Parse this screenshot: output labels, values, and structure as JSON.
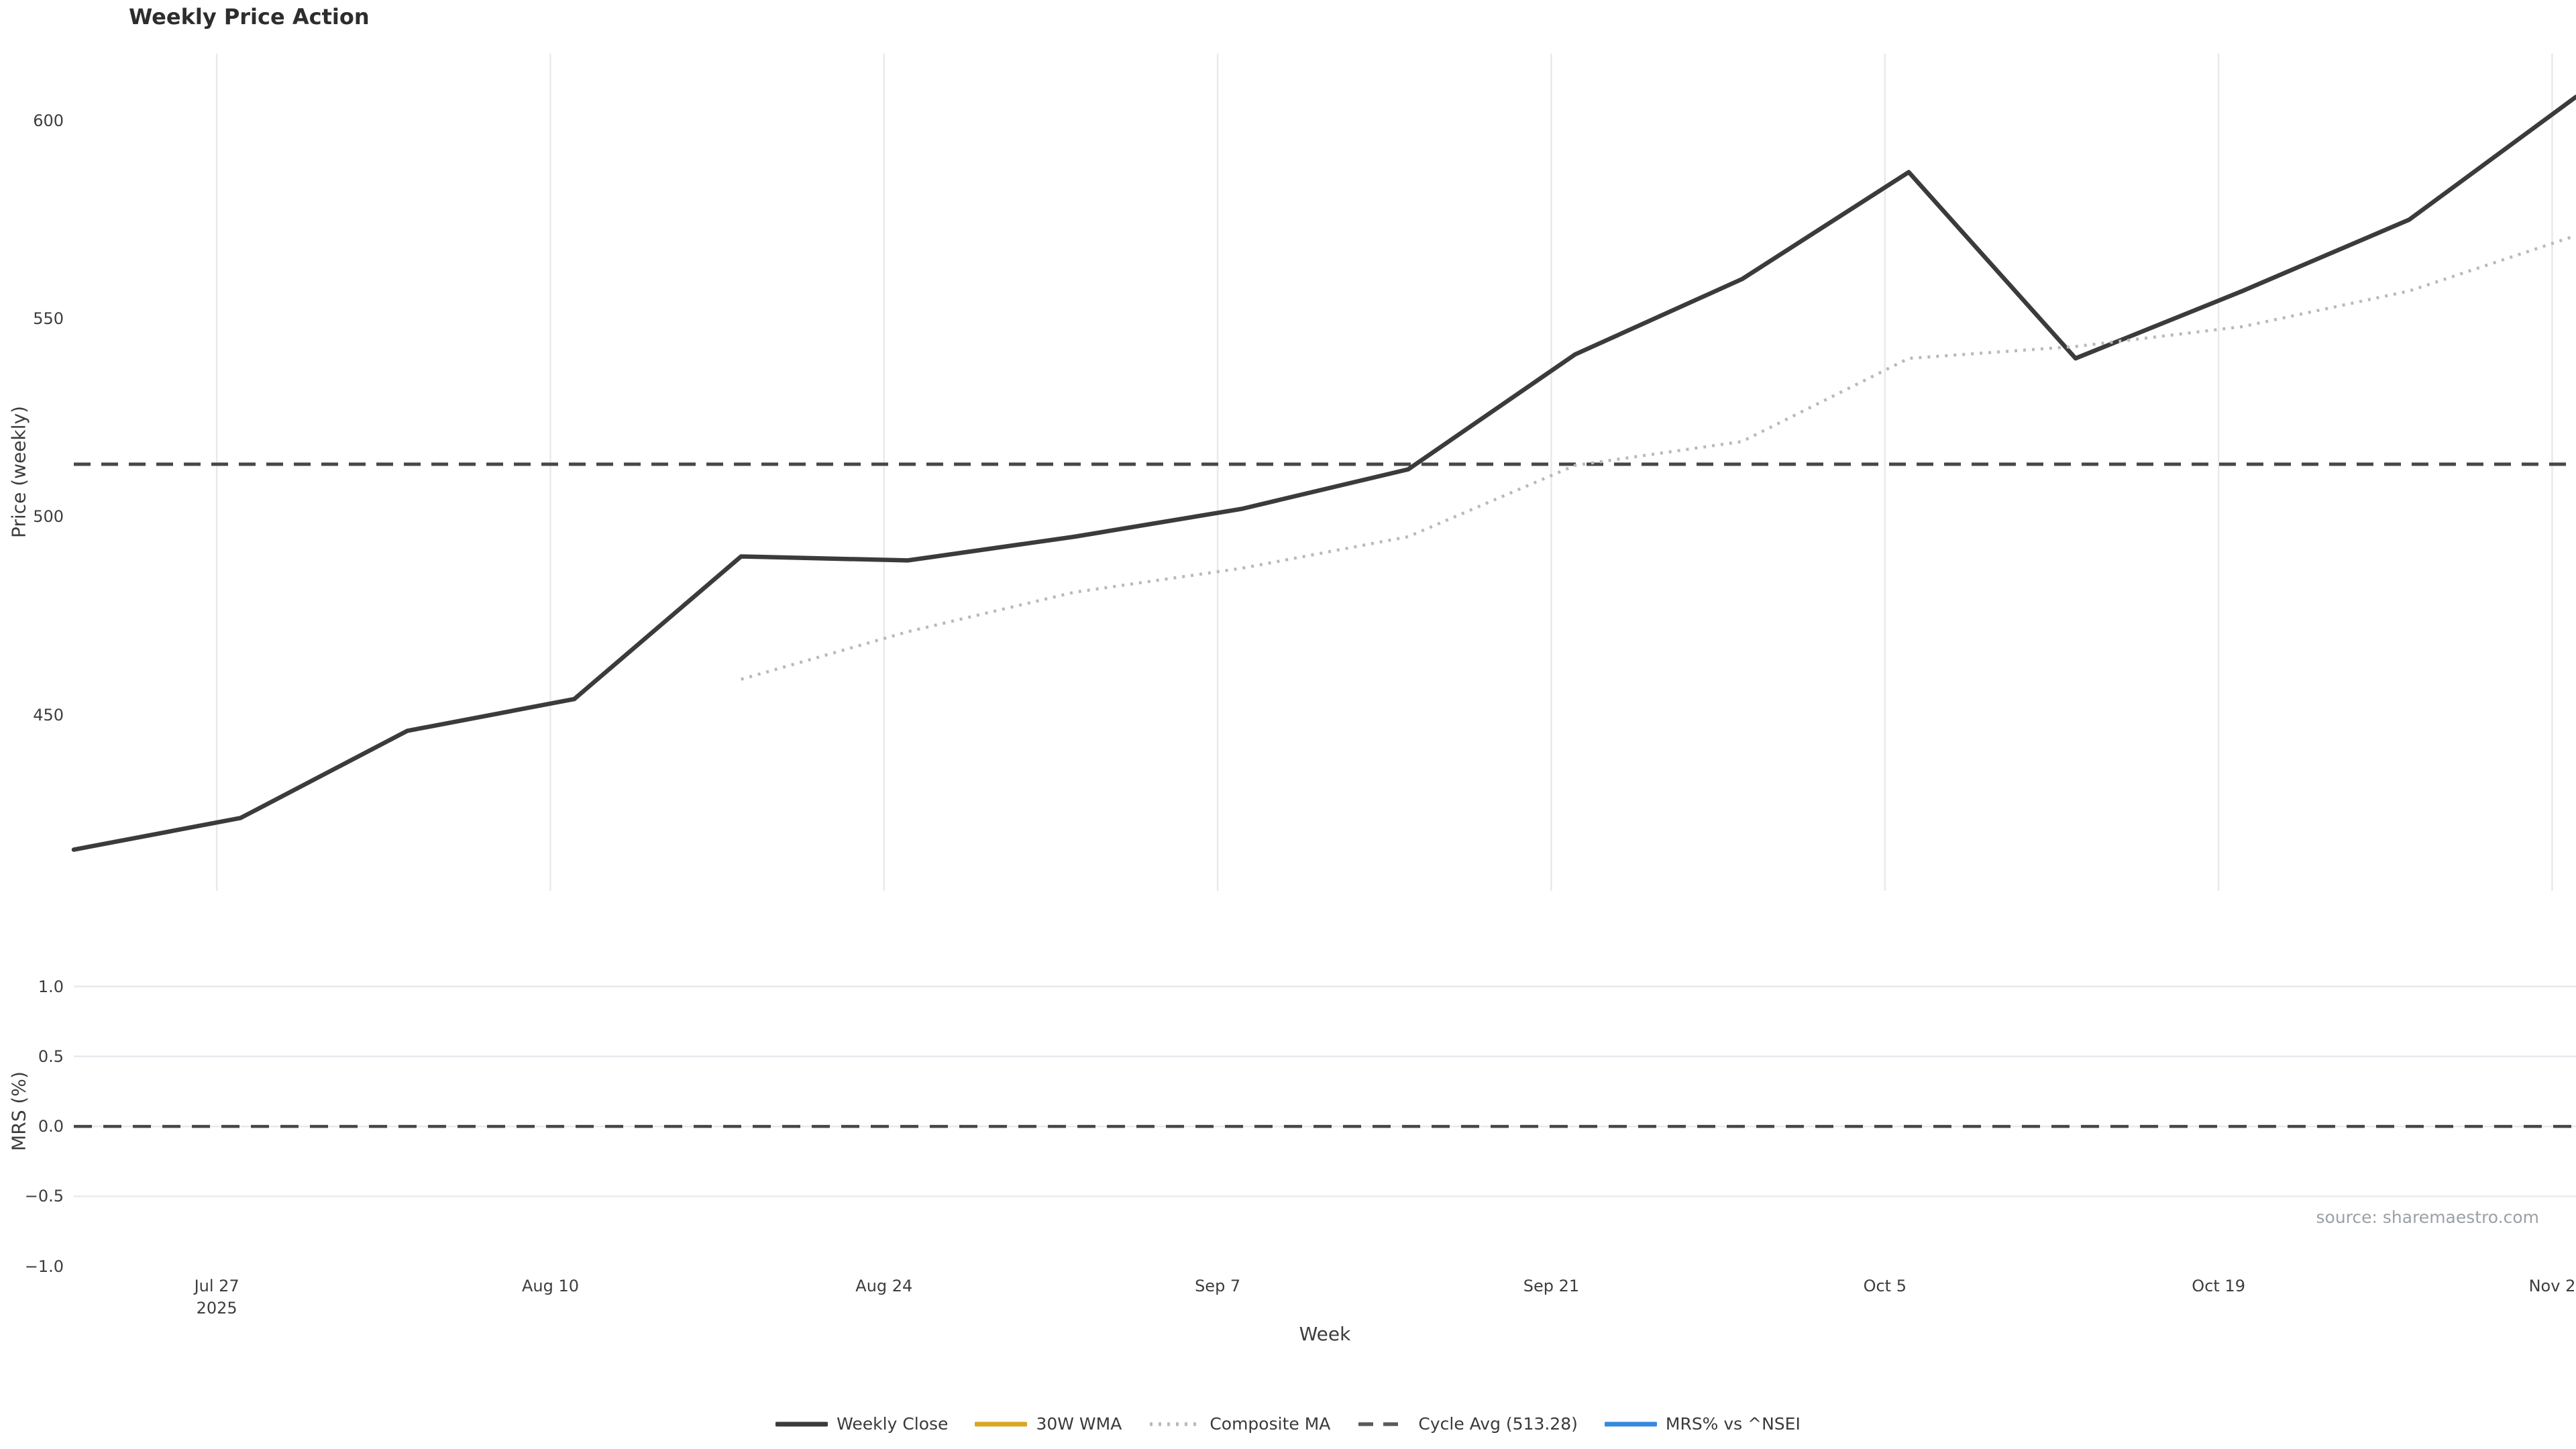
{
  "title": "Weekly Price Action",
  "xlabel": "Week",
  "source": "source: sharemaestro.com",
  "price_panel": {
    "ylabel": "Price (weekly)",
    "ytick_labels": [
      "450",
      "500",
      "550",
      "600"
    ]
  },
  "mrs_panel": {
    "ylabel": "MRS (%)",
    "ytick_labels": [
      "1.0",
      "0.5",
      "0.0",
      "−0.5",
      "−1.0"
    ]
  },
  "legend": [
    {
      "label": "Weekly Close",
      "color": "#3b3b3b",
      "style": "solid"
    },
    {
      "label": "30W WMA",
      "color": "#DAA520",
      "style": "solid"
    },
    {
      "label": "Composite MA",
      "color": "#b9b9b9",
      "style": "dotted"
    },
    {
      "label": "Cycle Avg (513.28)",
      "color": "#5a5a5a",
      "style": "dashed"
    },
    {
      "label": "MRS% vs ^NSEI",
      "color": "#3788DE",
      "style": "solid"
    }
  ],
  "chart_data": [
    {
      "type": "line",
      "panel": "price",
      "title": "Weekly Price Action",
      "xlabel": "Week",
      "ylabel": "Price (weekly)",
      "x_dates": [
        "2025-07-21",
        "2025-07-28",
        "2025-08-04",
        "2025-08-11",
        "2025-08-18",
        "2025-08-25",
        "2025-09-01",
        "2025-09-08",
        "2025-09-15",
        "2025-09-22",
        "2025-09-29",
        "2025-10-06",
        "2025-10-13",
        "2025-10-20",
        "2025-10-27",
        "2025-11-03"
      ],
      "x_days": [
        0,
        7,
        14,
        21,
        28,
        35,
        42,
        49,
        56,
        63,
        70,
        77,
        84,
        91,
        98,
        105
      ],
      "xlim_days": [
        0,
        105
      ],
      "series": [
        {
          "name": "Weekly Close",
          "color": "#3b3b3b",
          "style": "solid",
          "values": [
            416,
            424,
            446,
            454,
            490,
            489,
            495,
            502,
            512,
            541,
            560,
            587,
            540,
            557,
            575,
            606
          ]
        },
        {
          "name": "Composite MA",
          "color": "#b9b9b9",
          "style": "dotted",
          "values": [
            null,
            null,
            null,
            null,
            459,
            471,
            481,
            487,
            495,
            513,
            519,
            540,
            543,
            548,
            557,
            571
          ]
        },
        {
          "name": "30W WMA",
          "color": "#DAA520",
          "style": "solid",
          "values": [
            null,
            null,
            null,
            null,
            null,
            null,
            null,
            null,
            null,
            null,
            null,
            null,
            null,
            null,
            null,
            null
          ]
        },
        {
          "name": "Cycle Avg",
          "color": "#474747",
          "style": "dashed",
          "constant": 513.28
        }
      ],
      "cycle_avg": 513.28,
      "yticks": [
        450,
        500,
        550,
        600
      ],
      "ylim": [
        405.6,
        616.9
      ],
      "xticks": [
        {
          "label": "Jul 27",
          "sub": "2025",
          "day": 6
        },
        {
          "label": "Aug 10",
          "sub": "",
          "day": 20
        },
        {
          "label": "Aug 24",
          "sub": "",
          "day": 34
        },
        {
          "label": "Sep 7",
          "sub": "",
          "day": 48
        },
        {
          "label": "Sep 21",
          "sub": "",
          "day": 62
        },
        {
          "label": "Oct 5",
          "sub": "",
          "day": 76
        },
        {
          "label": "Oct 19",
          "sub": "",
          "day": 90
        },
        {
          "label": "Nov 2",
          "sub": "",
          "day": 104
        }
      ],
      "grid": "vertical-only",
      "legend_position": "bottom-center"
    },
    {
      "type": "line",
      "panel": "mrs",
      "ylabel": "MRS (%)",
      "series": [
        {
          "name": "MRS% vs ^NSEI",
          "color": "#3788DE",
          "style": "solid",
          "values": []
        }
      ],
      "zero_line": 0.0,
      "yticks": [
        1.0,
        0.5,
        0.0,
        -0.5,
        -1.0
      ],
      "ylim": [
        -1.05,
        1.3
      ],
      "grid": "horizontal-only"
    }
  ]
}
